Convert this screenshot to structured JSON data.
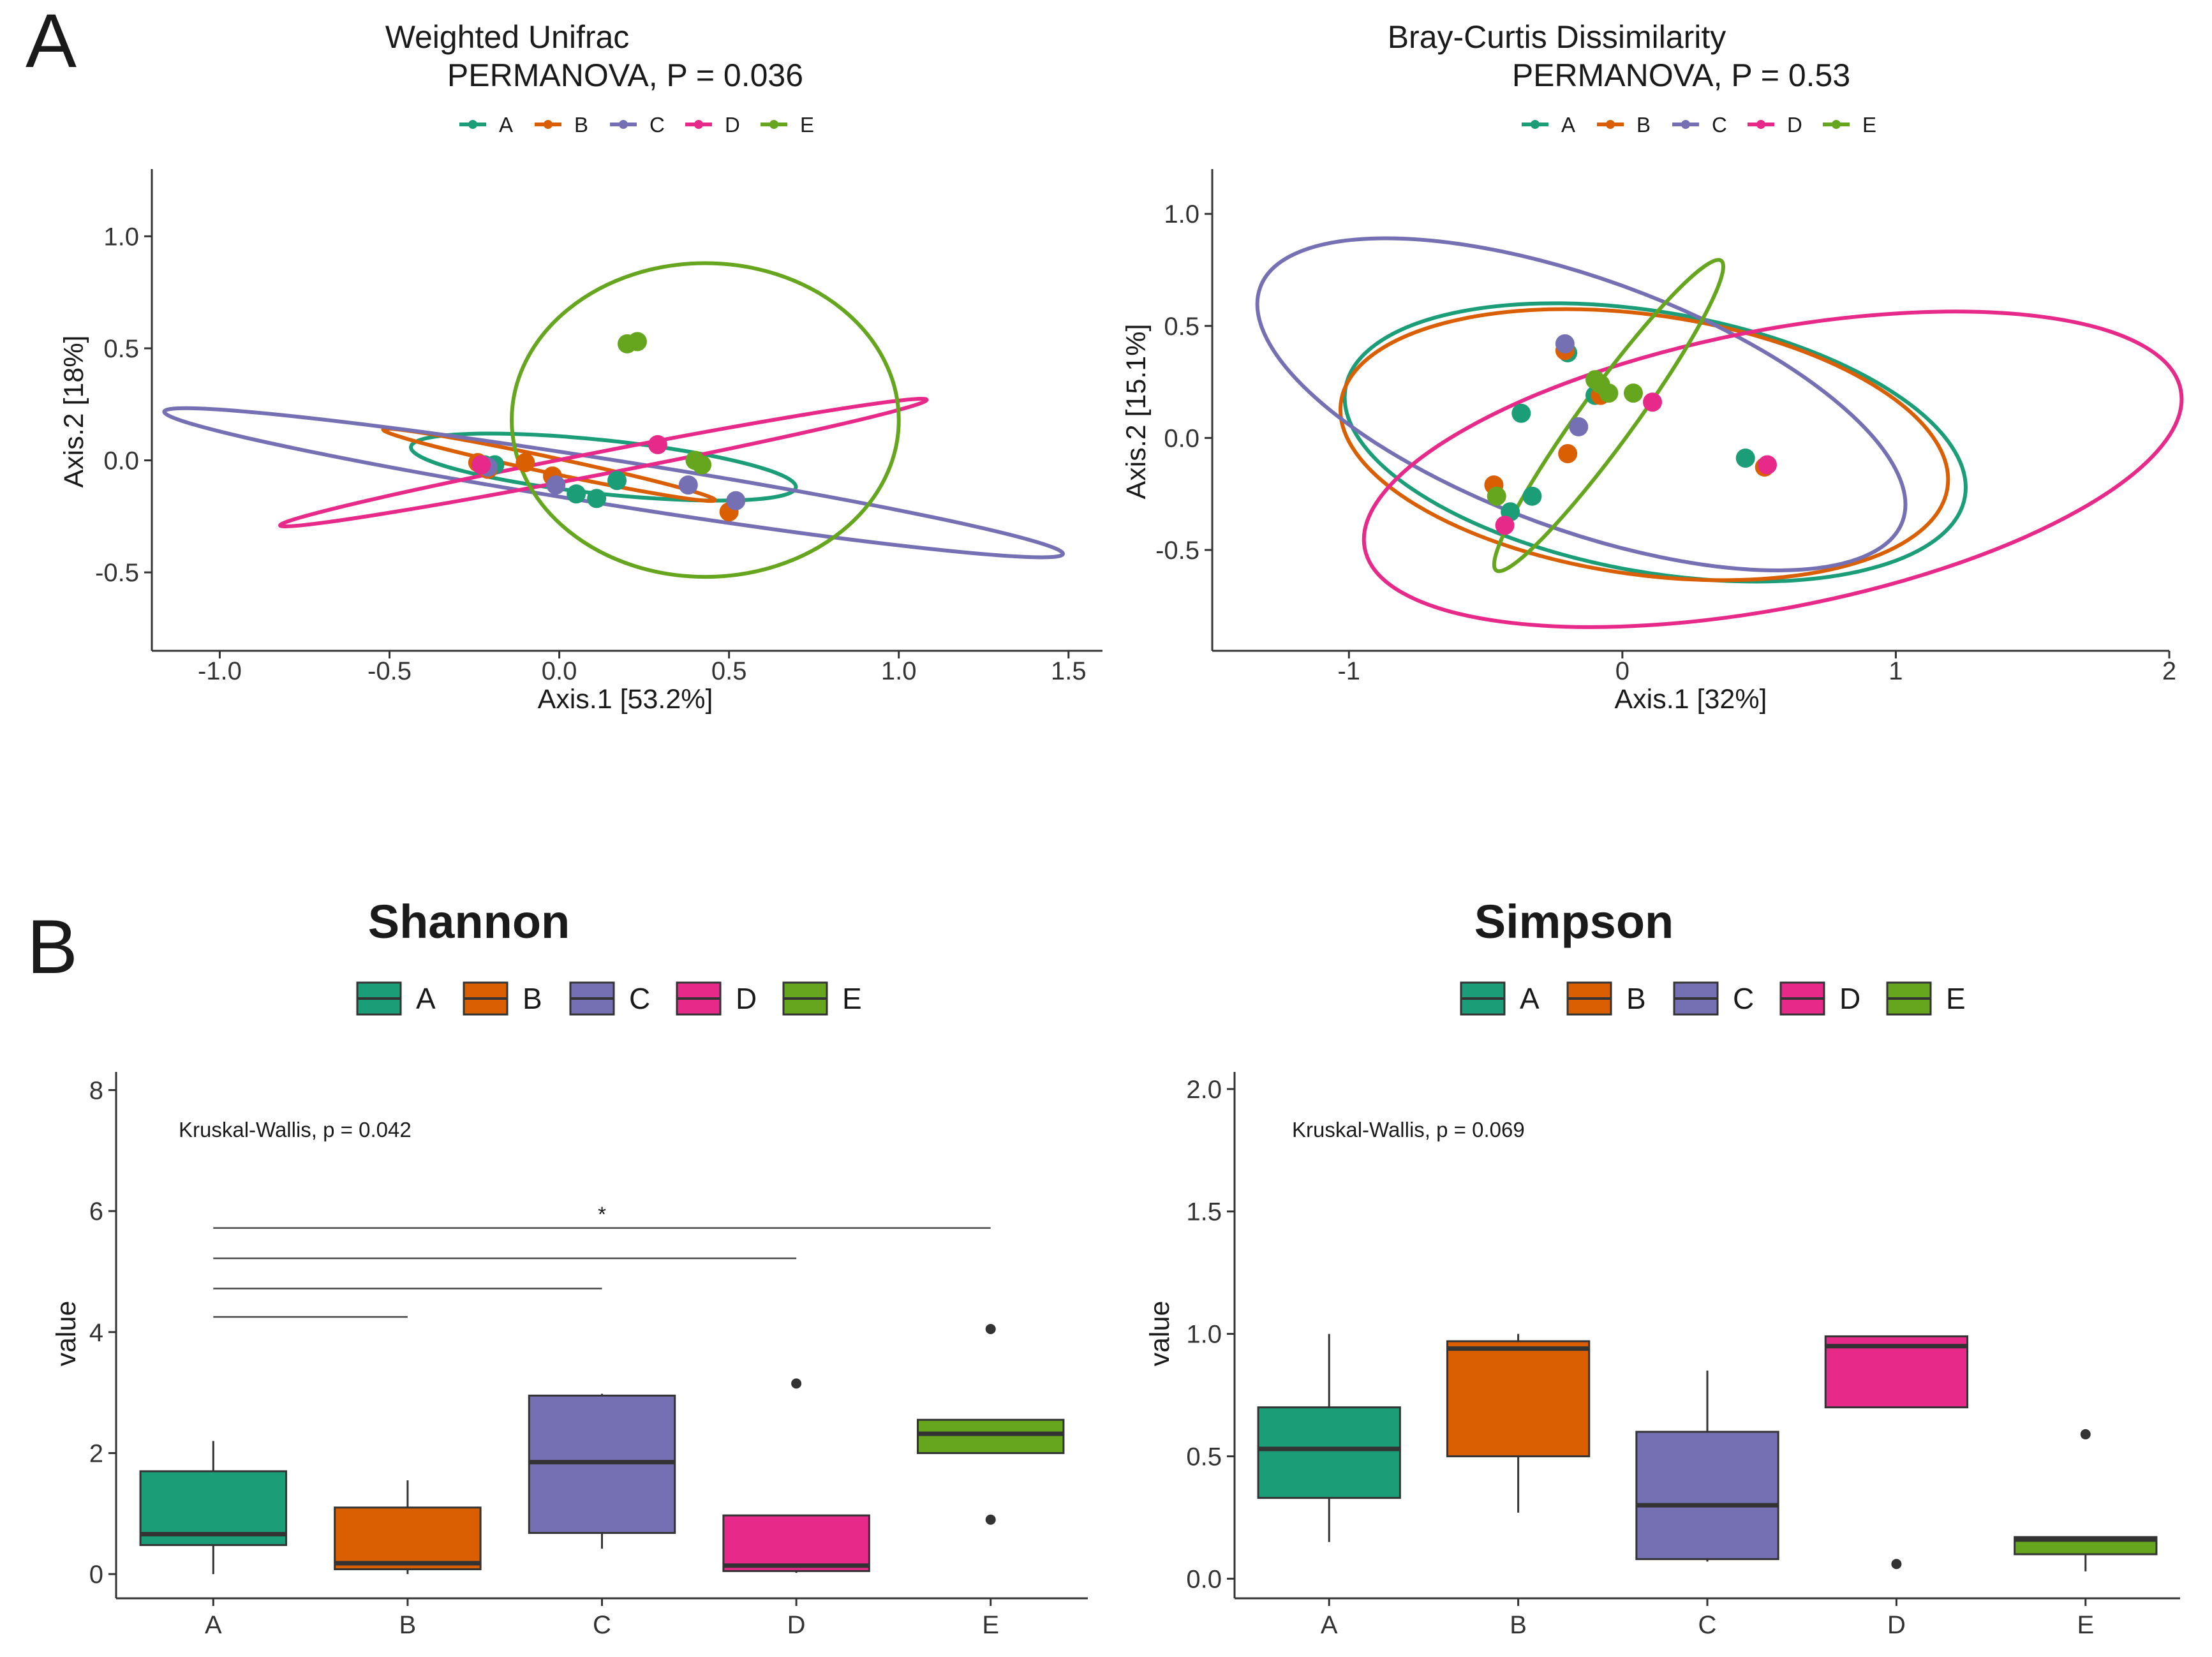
{
  "panels": {
    "A": "A",
    "B": "B"
  },
  "colors": {
    "A": "#1b9e77",
    "B": "#d95f02",
    "C": "#7570b3",
    "D": "#e7298a",
    "E": "#66a61e"
  },
  "chart_data": [
    {
      "id": "wunifrac",
      "type": "scatter",
      "title": "Weighted Unifrac",
      "subtitle": "PERMANOVA, P = 0.036",
      "xlabel": "Axis.1   [53.2%]",
      "ylabel": "Axis.2   [18%]",
      "xlim": [
        -1.2,
        1.6
      ],
      "ylim": [
        -0.85,
        1.3
      ],
      "xticks": [
        -1.0,
        -0.5,
        0.0,
        0.5,
        1.0,
        1.5
      ],
      "xtick_labels": [
        "-1.0",
        "-0.5",
        "0.0",
        "0.5",
        "1.0",
        "1.5"
      ],
      "yticks": [
        -0.5,
        0.0,
        0.5,
        1.0
      ],
      "ytick_labels": [
        "-0.5",
        "0.0",
        "0.5",
        "1.0"
      ],
      "legend": [
        "A",
        "B",
        "C",
        "D",
        "E"
      ],
      "legend_position": "top",
      "series": [
        {
          "name": "A",
          "points": [
            [
              0.05,
              -0.15
            ],
            [
              0.11,
              -0.17
            ],
            [
              0.17,
              -0.09
            ],
            [
              -0.22,
              -0.02
            ],
            [
              -0.19,
              -0.02
            ]
          ],
          "ellipse": {
            "cx": 0.13,
            "cy": -0.03,
            "rx": 0.57,
            "ry": 0.12,
            "angle": -6
          }
        },
        {
          "name": "B",
          "points": [
            [
              -0.24,
              -0.01
            ],
            [
              -0.1,
              -0.01
            ],
            [
              -0.02,
              -0.07
            ],
            [
              0.5,
              -0.23
            ],
            [
              -0.21,
              -0.04
            ]
          ],
          "ellipse": {
            "cx": -0.03,
            "cy": -0.02,
            "rx": 0.5,
            "ry": 0.035,
            "angle": -12
          }
        },
        {
          "name": "C",
          "points": [
            [
              -0.21,
              -0.03
            ],
            [
              -0.01,
              -0.11
            ],
            [
              0.38,
              -0.11
            ],
            [
              0.52,
              -0.18
            ]
          ],
          "ellipse": {
            "cx": 0.16,
            "cy": -0.1,
            "rx": 1.34,
            "ry": 0.1,
            "angle": -9
          }
        },
        {
          "name": "D",
          "points": [
            [
              0.29,
              0.07
            ],
            [
              -0.23,
              -0.02
            ]
          ],
          "ellipse": {
            "cx": 0.13,
            "cy": -0.01,
            "rx": 0.97,
            "ry": 0.05,
            "angle": 11
          }
        },
        {
          "name": "E",
          "points": [
            [
              0.2,
              0.52
            ],
            [
              0.23,
              0.53
            ],
            [
              0.4,
              0.0
            ],
            [
              0.42,
              -0.02
            ]
          ],
          "ellipse": {
            "cx": 0.43,
            "cy": 0.18,
            "rx": 0.57,
            "ry": 0.7,
            "angle": 0
          }
        }
      ]
    },
    {
      "id": "braycurtis",
      "type": "scatter",
      "title": "Bray-Curtis Dissimilarity",
      "subtitle": "PERMANOVA, P = 0.53",
      "xlabel": "Axis.1   [32%]",
      "ylabel": "Axis.2   [15.1%]",
      "xlim": [
        -1.5,
        2.0
      ],
      "ylim": [
        -0.95,
        1.2
      ],
      "xticks": [
        -1,
        0,
        1,
        2
      ],
      "xtick_labels": [
        "-1",
        "0",
        "1",
        "2"
      ],
      "yticks": [
        -0.5,
        0.0,
        0.5,
        1.0
      ],
      "ytick_labels": [
        "-0.5",
        "0.0",
        "0.5",
        "1.0"
      ],
      "legend": [
        "A",
        "B",
        "C",
        "D",
        "E"
      ],
      "legend_position": "top",
      "series": [
        {
          "name": "A",
          "points": [
            [
              -0.37,
              0.11
            ],
            [
              -0.41,
              -0.33
            ],
            [
              -0.33,
              -0.26
            ],
            [
              -0.1,
              0.19
            ],
            [
              0.45,
              -0.09
            ],
            [
              -0.2,
              0.38
            ]
          ],
          "ellipse": {
            "cx": 0.12,
            "cy": -0.02,
            "rx": 1.15,
            "ry": 0.58,
            "angle": -10
          }
        },
        {
          "name": "B",
          "points": [
            [
              -0.47,
              -0.21
            ],
            [
              -0.2,
              -0.07
            ],
            [
              -0.08,
              0.19
            ],
            [
              0.52,
              -0.13
            ],
            [
              -0.21,
              0.39
            ]
          ],
          "ellipse": {
            "cx": 0.08,
            "cy": -0.03,
            "rx": 1.12,
            "ry": 0.58,
            "angle": -8
          }
        },
        {
          "name": "C",
          "points": [
            [
              -0.21,
              0.42
            ],
            [
              -0.16,
              0.05
            ]
          ],
          "ellipse": {
            "cx": -0.15,
            "cy": 0.15,
            "rx": 1.25,
            "ry": 0.56,
            "angle": -20
          }
        },
        {
          "name": "D",
          "points": [
            [
              0.11,
              0.16
            ],
            [
              -0.43,
              -0.39
            ],
            [
              0.53,
              -0.12
            ]
          ],
          "ellipse": {
            "cx": 0.55,
            "cy": -0.14,
            "rx": 1.52,
            "ry": 0.62,
            "angle": 11
          }
        },
        {
          "name": "E",
          "points": [
            [
              -0.05,
              0.2
            ],
            [
              0.04,
              0.2
            ],
            [
              -0.08,
              0.24
            ],
            [
              -0.46,
              -0.26
            ],
            [
              -0.1,
              0.26
            ]
          ],
          "ellipse": {
            "cx": -0.05,
            "cy": 0.1,
            "rx": 0.7,
            "ry": 0.12,
            "angle": 54
          }
        }
      ]
    },
    {
      "id": "shannon",
      "type": "box",
      "title": "Shannon",
      "ylabel": "value",
      "xlabel": "",
      "categories": [
        "A",
        "B",
        "C",
        "D",
        "E"
      ],
      "ylim": [
        -0.4,
        8.3
      ],
      "yticks": [
        0,
        2,
        4,
        6,
        8
      ],
      "ytick_labels": [
        "0",
        "2",
        "4",
        "6",
        "8"
      ],
      "annotation": "Kruskal-Wallis, p = 0.042",
      "significance_brackets": [
        {
          "from": "A",
          "to": "B",
          "y": 4.25,
          "label": ""
        },
        {
          "from": "A",
          "to": "C",
          "y": 4.72,
          "label": ""
        },
        {
          "from": "A",
          "to": "D",
          "y": 5.22,
          "label": ""
        },
        {
          "from": "A",
          "to": "E",
          "y": 5.72,
          "label": "*"
        }
      ],
      "legend": [
        "A",
        "B",
        "C",
        "D",
        "E"
      ],
      "legend_position": "top",
      "boxes": [
        {
          "name": "A",
          "min": 0.0,
          "q1": 0.48,
          "median": 0.66,
          "q3": 1.7,
          "max": 2.2,
          "outliers": []
        },
        {
          "name": "B",
          "min": 0.0,
          "q1": 0.08,
          "median": 0.18,
          "q3": 1.1,
          "max": 1.55,
          "outliers": []
        },
        {
          "name": "C",
          "min": 0.42,
          "q1": 0.68,
          "median": 1.85,
          "q3": 2.95,
          "max": 2.98,
          "outliers": []
        },
        {
          "name": "D",
          "min": 0.02,
          "q1": 0.05,
          "median": 0.14,
          "q3": 0.97,
          "max": 0.97,
          "outliers": [
            3.15
          ]
        },
        {
          "name": "E",
          "min": 2.0,
          "q1": 2.0,
          "median": 2.32,
          "q3": 2.55,
          "max": 2.55,
          "outliers": [
            4.05,
            0.9
          ]
        }
      ]
    },
    {
      "id": "simpson",
      "type": "box",
      "title": "Simpson",
      "ylabel": "value",
      "xlabel": "",
      "categories": [
        "A",
        "B",
        "C",
        "D",
        "E"
      ],
      "ylim": [
        -0.08,
        2.07
      ],
      "yticks": [
        0.0,
        0.5,
        1.0,
        1.5,
        2.0
      ],
      "ytick_labels": [
        "0.0",
        "0.5",
        "1.0",
        "1.5",
        "2.0"
      ],
      "annotation": "Kruskal-Wallis, p = 0.069",
      "legend": [
        "A",
        "B",
        "C",
        "D",
        "E"
      ],
      "legend_position": "top",
      "boxes": [
        {
          "name": "A",
          "min": 0.15,
          "q1": 0.33,
          "median": 0.53,
          "q3": 0.7,
          "max": 1.0,
          "outliers": []
        },
        {
          "name": "B",
          "min": 0.27,
          "q1": 0.5,
          "median": 0.94,
          "q3": 0.97,
          "max": 1.0,
          "outliers": []
        },
        {
          "name": "C",
          "min": 0.07,
          "q1": 0.08,
          "median": 0.3,
          "q3": 0.6,
          "max": 0.85,
          "outliers": []
        },
        {
          "name": "D",
          "min": 0.7,
          "q1": 0.7,
          "median": 0.95,
          "q3": 0.99,
          "max": 0.99,
          "outliers": [
            0.06
          ]
        },
        {
          "name": "E",
          "min": 0.03,
          "q1": 0.1,
          "median": 0.16,
          "q3": 0.17,
          "max": 0.17,
          "outliers": [
            0.59
          ]
        }
      ]
    }
  ]
}
